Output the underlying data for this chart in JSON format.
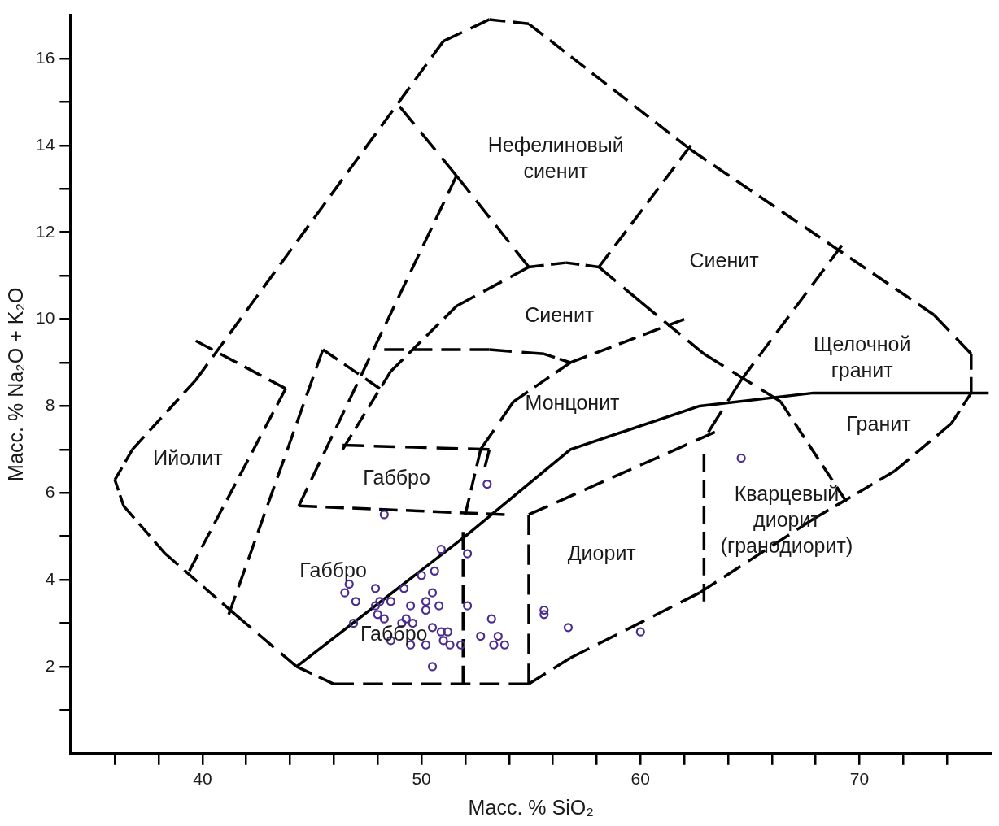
{
  "chart_data": {
    "type": "scatter",
    "xlabel": "Масс. % SiO₂",
    "ylabel": "Масс. % Na₂O + K₂O",
    "xlim": [
      34,
      76
    ],
    "ylim": [
      0,
      17
    ],
    "xticks": [
      {
        "value": 36,
        "label": null
      },
      {
        "value": 38,
        "label": null
      },
      40,
      {
        "value": 42,
        "label": null
      },
      {
        "value": 44,
        "label": null
      },
      {
        "value": 46,
        "label": null
      },
      {
        "value": 48,
        "label": null
      },
      50,
      {
        "value": 52,
        "label": null
      },
      {
        "value": 54,
        "label": null
      },
      {
        "value": 56,
        "label": null
      },
      {
        "value": 58,
        "label": null
      },
      60,
      {
        "value": 62,
        "label": null
      },
      {
        "value": 64,
        "label": null
      },
      {
        "value": 66,
        "label": null
      },
      {
        "value": 68,
        "label": null
      },
      70,
      {
        "value": 72,
        "label": null
      },
      {
        "value": 74,
        "label": null
      }
    ],
    "yticks": [
      {
        "value": 1,
        "label": null
      },
      2,
      {
        "value": 3,
        "label": null
      },
      4,
      {
        "value": 5,
        "label": null
      },
      6,
      {
        "value": 7,
        "label": null
      },
      8,
      {
        "value": 9,
        "label": null
      },
      10,
      {
        "value": 11,
        "label": null
      },
      12,
      {
        "value": 13,
        "label": null
      },
      14,
      {
        "value": 15,
        "label": null
      },
      16
    ],
    "grid": false,
    "legend": false,
    "series": [
      {
        "type": "scatter",
        "marker": "circle",
        "color": "#4b2d8f",
        "x": [
          53.0,
          48.3,
          50.9,
          52.1,
          50.6,
          50.0,
          46.7,
          46.5,
          47.9,
          49.2,
          50.5,
          47.0,
          48.1,
          48.6,
          49.5,
          50.2,
          50.2,
          50.8,
          52.1,
          47.9,
          48.0,
          48.3,
          46.9,
          49.1,
          49.3,
          49.6,
          50.5,
          50.9,
          51.2,
          48.6,
          49.5,
          50.2,
          51.0,
          51.3,
          51.8,
          50.5,
          53.2,
          52.7,
          53.5,
          53.3,
          53.8,
          55.6,
          55.6,
          56.7,
          60.0,
          64.6
        ],
        "values": [
          6.2,
          5.5,
          4.7,
          4.6,
          4.2,
          4.1,
          3.9,
          3.7,
          3.8,
          3.8,
          3.7,
          3.5,
          3.5,
          3.5,
          3.4,
          3.5,
          3.3,
          3.4,
          3.4,
          3.4,
          3.2,
          3.1,
          3.0,
          3.0,
          3.1,
          3.0,
          2.9,
          2.8,
          2.8,
          2.6,
          2.5,
          2.5,
          2.6,
          2.5,
          2.5,
          2.0,
          3.1,
          2.7,
          2.7,
          2.5,
          2.5,
          3.3,
          3.2,
          2.9,
          2.8,
          6.8
        ]
      },
      {
        "type": "line",
        "line_style": "dashed",
        "color": "#000000",
        "x": [
          44.3,
          41.5,
          38.3,
          36.4,
          36.0,
          36.8,
          39.7,
          51.0,
          53.1,
          54.9,
          62.3,
          73.4,
          75.1,
          75.1,
          74.2,
          71.6,
          67.9,
          62.7,
          56.8,
          54.9,
          46.0,
          44.3
        ],
        "values": [
          2.0,
          3.2,
          4.6,
          5.7,
          6.3,
          7.0,
          8.6,
          16.4,
          16.9,
          16.8,
          13.9,
          10.1,
          9.2,
          8.3,
          7.6,
          6.5,
          5.4,
          3.7,
          2.2,
          1.6,
          1.6,
          2.0
        ]
      },
      {
        "type": "line",
        "line_style": "solid",
        "color": "#000000",
        "x": [
          44.3,
          52.0,
          56.8,
          62.7,
          67.9,
          75.9
        ],
        "values": [
          2.0,
          5.0,
          7.0,
          8.0,
          8.3,
          8.3
        ]
      },
      {
        "type": "line",
        "line_style": "dashed",
        "color": "#000000",
        "x": [
          39.4,
          43.8,
          39.7
        ],
        "values": [
          4.2,
          8.4,
          9.5
        ]
      },
      {
        "type": "line",
        "line_style": "dashed",
        "color": "#000000",
        "x": [
          41.2,
          45.5,
          48.1
        ],
        "values": [
          3.2,
          9.3,
          8.4
        ]
      },
      {
        "type": "line",
        "line_style": "dashed",
        "color": "#000000",
        "x": [
          44.4,
          51.6
        ],
        "values": [
          5.7,
          13.3
        ]
      },
      {
        "type": "line",
        "line_style": "dashed",
        "color": "#000000",
        "x": [
          49.0,
          51.6,
          54.9,
          56.6,
          58.1,
          62.3
        ],
        "values": [
          14.9,
          13.3,
          11.2,
          11.3,
          11.2,
          14.0
        ]
      },
      {
        "type": "line",
        "line_style": "dashed",
        "color": "#000000",
        "x": [
          58.1,
          60.0,
          62.9,
          66.4,
          69.4
        ],
        "values": [
          11.2,
          10.4,
          9.2,
          8.1,
          5.8
        ]
      },
      {
        "type": "line",
        "line_style": "dashed",
        "color": "#000000",
        "x": [
          46.4,
          48.6,
          51.6,
          54.9
        ],
        "values": [
          7.0,
          8.8,
          10.3,
          11.2
        ]
      },
      {
        "type": "line",
        "line_style": "dashed",
        "color": "#000000",
        "x": [
          48.3,
          53.1,
          55.6,
          56.8,
          62.0
        ],
        "values": [
          9.3,
          9.3,
          9.2,
          9.0,
          10.0
        ]
      },
      {
        "type": "line",
        "line_style": "dashed",
        "color": "#000000",
        "x": [
          56.8,
          54.2,
          52.7,
          52.0
        ],
        "values": [
          9.0,
          8.1,
          7.0,
          5.5
        ]
      },
      {
        "type": "line",
        "line_style": "dashed",
        "color": "#000000",
        "x": [
          46.4,
          53.1,
          52.9
        ],
        "values": [
          7.1,
          7.0,
          6.6
        ]
      },
      {
        "type": "line",
        "line_style": "dashed",
        "color": "#000000",
        "x": [
          44.4,
          53.8
        ],
        "values": [
          5.7,
          5.5
        ]
      },
      {
        "type": "line",
        "line_style": "dashed",
        "color": "#000000",
        "x": [
          51.9,
          51.9
        ],
        "values": [
          5.1,
          1.6
        ]
      },
      {
        "type": "line",
        "line_style": "dashed",
        "color": "#000000",
        "x": [
          54.9,
          54.9,
          63.4
        ],
        "values": [
          1.6,
          5.5,
          7.4
        ]
      },
      {
        "type": "line",
        "line_style": "dashed",
        "color": "#000000",
        "x": [
          62.9,
          62.9
        ],
        "values": [
          6.9,
          3.5
        ]
      },
      {
        "type": "line",
        "line_style": "dashed",
        "color": "#000000",
        "x": [
          69.2,
          64.6,
          63.1
        ],
        "values": [
          11.7,
          8.6,
          7.4
        ]
      }
    ],
    "annotations": [
      "Нефелиновый\nсиенит",
      "Сиенит",
      "Сиенит",
      "Щелочной\nгранит",
      "Монцонит",
      "Гранит",
      "Ийолит",
      "Габбро",
      "Кварцевый\nдиорит\n(гранодиорит)",
      "Диорит",
      "Габбро",
      "Габбро"
    ]
  }
}
